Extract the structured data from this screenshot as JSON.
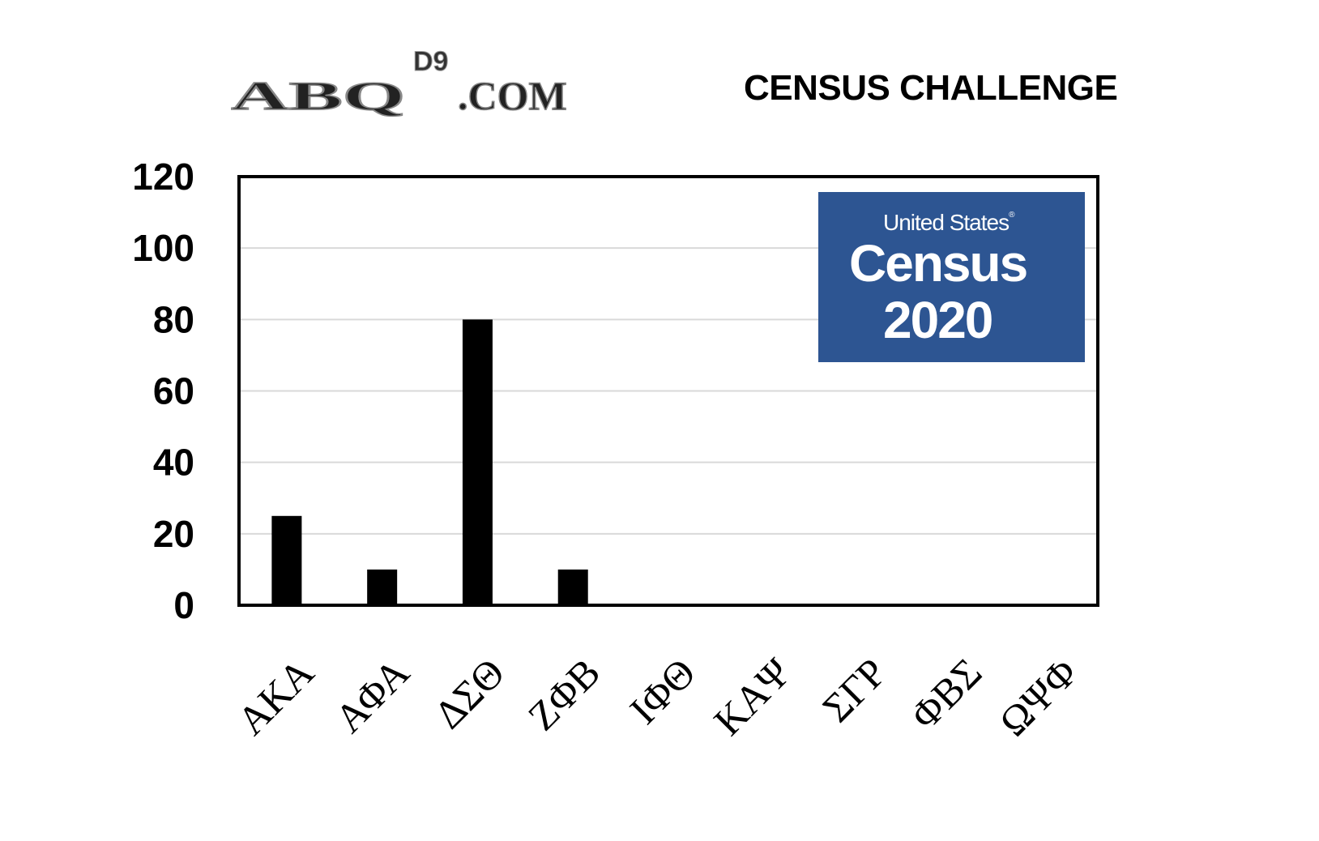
{
  "header": {
    "logo_text": "ABQ D9 .COM",
    "title": "CENSUS CHALLENGE"
  },
  "census_logo": {
    "line1": "United States",
    "registered": "®",
    "line2": "Census",
    "line3": "2020",
    "color": "#2d5592"
  },
  "chart_data": {
    "type": "bar",
    "title": "CENSUS CHALLENGE",
    "xlabel": "",
    "ylabel": "",
    "categories": [
      "ΑΚΑ",
      "ΑΦΑ",
      "ΔΣΘ",
      "ΖΦΒ",
      "ΙΦΘ",
      "ΚΑΨ",
      "ΣΓΡ",
      "ΦΒΣ",
      "ΩΨΦ"
    ],
    "values": [
      25,
      10,
      80,
      10,
      0,
      0,
      0,
      0,
      0
    ],
    "ylim": [
      0,
      120
    ],
    "yticks": [
      "0",
      "20",
      "40",
      "60",
      "80",
      "100",
      "120"
    ],
    "grid": true,
    "bar_color": "#000000",
    "legend": "none"
  }
}
